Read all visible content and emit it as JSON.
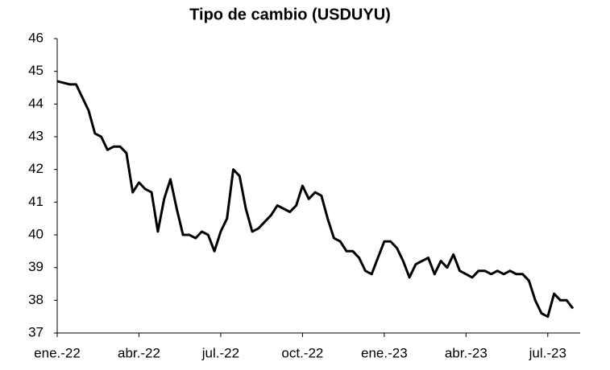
{
  "chart_data": {
    "type": "line",
    "title": "Tipo de cambio (USDUYU)",
    "categories": [
      "ene.-22",
      null,
      null,
      null,
      null,
      null,
      null,
      null,
      null,
      null,
      null,
      null,
      null,
      "abr.-22",
      null,
      null,
      null,
      null,
      null,
      null,
      null,
      null,
      null,
      null,
      null,
      null,
      "jul.-22",
      null,
      null,
      null,
      null,
      null,
      null,
      null,
      null,
      null,
      null,
      null,
      null,
      "oct.-22",
      null,
      null,
      null,
      null,
      null,
      null,
      null,
      null,
      null,
      null,
      null,
      null,
      "ene.-23",
      null,
      null,
      null,
      null,
      null,
      null,
      null,
      null,
      null,
      null,
      null,
      null,
      "abr.-23",
      null,
      null,
      null,
      null,
      null,
      null,
      null,
      null,
      null,
      null,
      null,
      null,
      "jul.-23",
      null,
      null,
      null,
      null
    ],
    "values": [
      44.7,
      44.65,
      44.6,
      44.6,
      44.2,
      43.8,
      43.1,
      43.0,
      42.6,
      42.7,
      42.7,
      42.5,
      41.3,
      41.6,
      41.4,
      41.3,
      40.1,
      41.1,
      41.7,
      40.8,
      40.0,
      40.0,
      39.9,
      40.1,
      40.0,
      39.5,
      40.1,
      40.5,
      42.0,
      41.8,
      40.8,
      40.1,
      40.2,
      40.4,
      40.6,
      40.9,
      40.8,
      40.7,
      40.9,
      41.5,
      41.1,
      41.3,
      41.2,
      40.5,
      39.9,
      39.8,
      39.5,
      39.5,
      39.3,
      38.9,
      38.8,
      39.3,
      39.8,
      39.8,
      39.6,
      39.2,
      38.7,
      39.1,
      39.2,
      39.3,
      38.8,
      39.2,
      39.0,
      39.4,
      38.9,
      38.8,
      38.7,
      38.9,
      38.9,
      38.8,
      38.9,
      38.8,
      38.9,
      38.8,
      38.8,
      38.6,
      38.0,
      37.6,
      37.5,
      38.2,
      38.0,
      38.0,
      37.75
    ],
    "color": "#000000",
    "ylim": [
      37,
      46
    ],
    "yticks": [
      37,
      38,
      39,
      40,
      41,
      42,
      43,
      44,
      45,
      46
    ],
    "grid": false
  }
}
